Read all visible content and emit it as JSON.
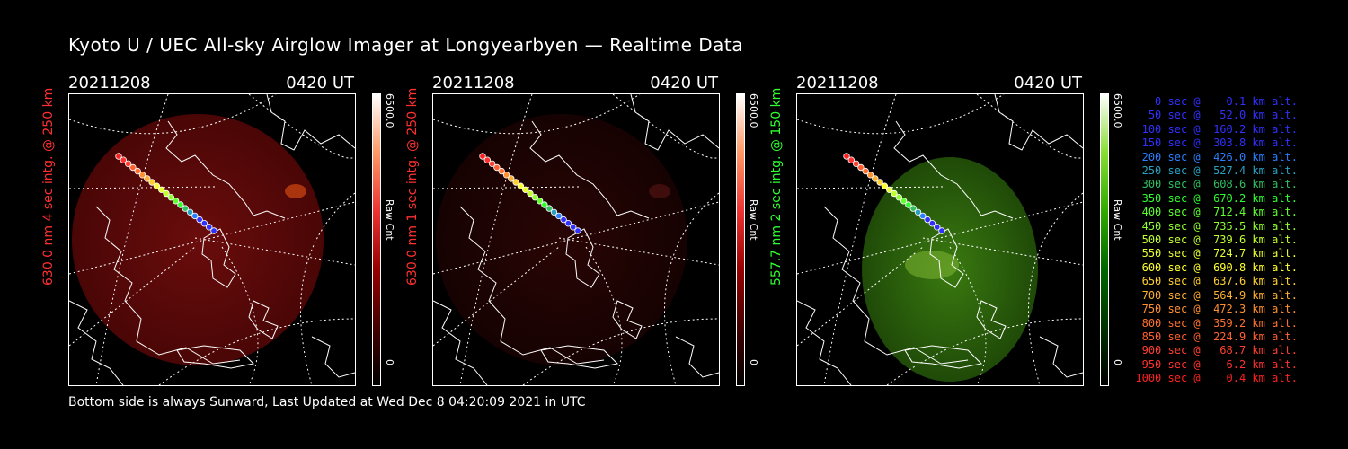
{
  "title": "Kyoto U / UEC All-sky Airglow Imager at Longyearbyen — Realtime Data",
  "footer": "Bottom side is always Sunward, Last Updated at Wed Dec  8 04:20:09 2021 in UTC",
  "panels": [
    {
      "date": "20211208",
      "time": "0420 UT",
      "ylabel": "630.0 nm 4 sec intg. @ 250 km",
      "ylabel_color": "#ff3030",
      "cb_max": "6500.0",
      "cb_label": "Raw Cnt",
      "cb_min": "0",
      "tint": "red",
      "intensity": "bright"
    },
    {
      "date": "20211208",
      "time": "0420 UT",
      "ylabel": "630.0 nm 1 sec intg. @ 250 km",
      "ylabel_color": "#ff3030",
      "cb_max": "6500.0",
      "cb_label": "Raw Cnt",
      "cb_min": "0",
      "tint": "red",
      "intensity": "dim"
    },
    {
      "date": "20211208",
      "time": "0420 UT",
      "ylabel": "557.7 nm 2 sec intg. @ 150 km",
      "ylabel_color": "#30ff30",
      "cb_max": "6500.0",
      "cb_label": "Raw Cnt",
      "cb_min": "0",
      "tint": "green",
      "intensity": "bright"
    }
  ],
  "legend": [
    {
      "text": "   0 sec @    0.1 km alt.",
      "color": "#3030ff"
    },
    {
      "text": "  50 sec @   52.0 km alt.",
      "color": "#3030ff"
    },
    {
      "text": " 100 sec @  160.2 km alt.",
      "color": "#3030ff"
    },
    {
      "text": " 150 sec @  303.8 km alt.",
      "color": "#3030ff"
    },
    {
      "text": " 200 sec @  426.0 km alt.",
      "color": "#2a7fff"
    },
    {
      "text": " 250 sec @  527.4 km alt.",
      "color": "#2aa0c0"
    },
    {
      "text": " 300 sec @  608.6 km alt.",
      "color": "#30c060"
    },
    {
      "text": " 350 sec @  670.2 km alt.",
      "color": "#30ff30"
    },
    {
      "text": " 400 sec @  712.4 km alt.",
      "color": "#60ff30"
    },
    {
      "text": " 450 sec @  735.5 km alt.",
      "color": "#90ff30"
    },
    {
      "text": " 500 sec @  739.6 km alt.",
      "color": "#c0ff30"
    },
    {
      "text": " 550 sec @  724.7 km alt.",
      "color": "#e8ff30"
    },
    {
      "text": " 600 sec @  690.8 km alt.",
      "color": "#ffff30"
    },
    {
      "text": " 650 sec @  637.6 km alt.",
      "color": "#ffd030"
    },
    {
      "text": " 700 sec @  564.9 km alt.",
      "color": "#ffb030"
    },
    {
      "text": " 750 sec @  472.3 km alt.",
      "color": "#ff9030"
    },
    {
      "text": " 800 sec @  359.2 km alt.",
      "color": "#ff7030"
    },
    {
      "text": " 850 sec @  224.9 km alt.",
      "color": "#ff6030"
    },
    {
      "text": " 900 sec @   68.7 km alt.",
      "color": "#ff4030"
    },
    {
      "text": " 950 sec @    6.2 km alt.",
      "color": "#ff3030"
    },
    {
      "text": "1000 sec @    0.4 km alt.",
      "color": "#ff2020"
    }
  ]
}
